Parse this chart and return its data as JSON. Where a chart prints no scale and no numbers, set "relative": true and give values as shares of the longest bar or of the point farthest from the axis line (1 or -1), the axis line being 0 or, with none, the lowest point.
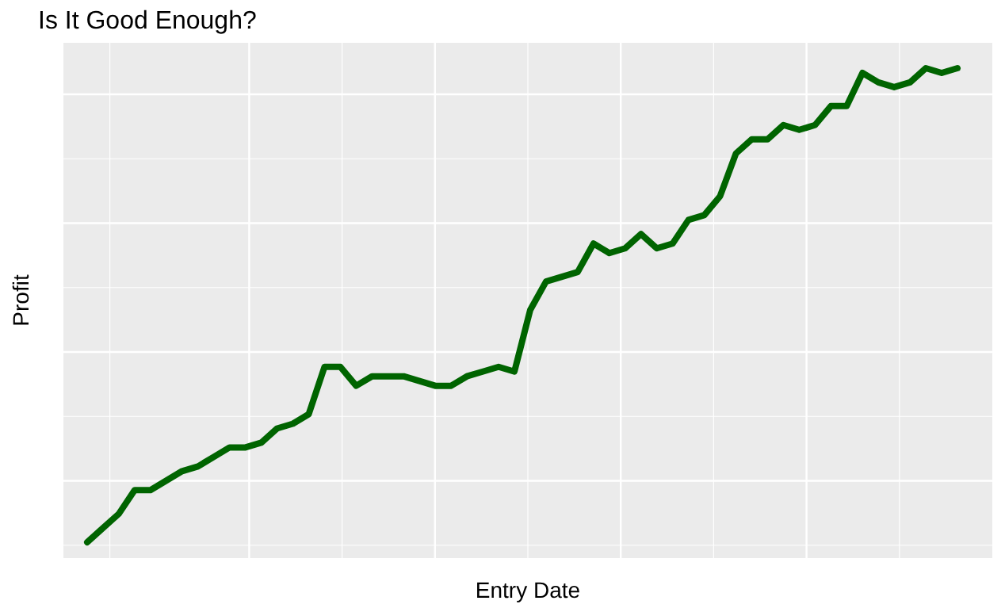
{
  "chart_data": {
    "type": "line",
    "title": "Is It Good Enough?",
    "xlabel": "Entry Date",
    "ylabel": "Profit",
    "relative": true,
    "grid": true,
    "categories": [
      null,
      null,
      null,
      null,
      null,
      null,
      null,
      null,
      null,
      null,
      null,
      null,
      null,
      null,
      null,
      null,
      null,
      null,
      null,
      null,
      null,
      null,
      null,
      null,
      null,
      null,
      null,
      null,
      null,
      null,
      null,
      null,
      null,
      null,
      null,
      null,
      null,
      null,
      null,
      null,
      null,
      null,
      null,
      null,
      null,
      null,
      null,
      null,
      null,
      null,
      null,
      null,
      null,
      null,
      null,
      null
    ],
    "series": [
      {
        "color": "#006400",
        "values": [
          0,
          0.03,
          0.06,
          0.11,
          0.11,
          0.13,
          0.15,
          0.16,
          0.18,
          0.2,
          0.2,
          0.21,
          0.24,
          0.25,
          0.27,
          0.37,
          0.37,
          0.33,
          0.35,
          0.35,
          0.35,
          0.34,
          0.33,
          0.33,
          0.35,
          0.36,
          0.37,
          0.36,
          0.49,
          0.55,
          0.56,
          0.57,
          0.63,
          0.61,
          0.62,
          0.65,
          0.62,
          0.63,
          0.68,
          0.69,
          0.73,
          0.82,
          0.85,
          0.85,
          0.88,
          0.87,
          0.88,
          0.92,
          0.92,
          0.99,
          0.97,
          0.96,
          0.97,
          1,
          0.99,
          1
        ]
      }
    ]
  }
}
